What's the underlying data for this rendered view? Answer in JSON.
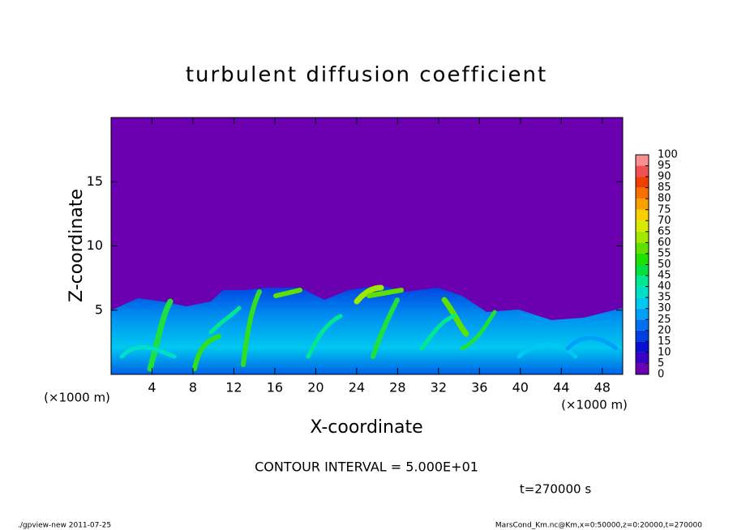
{
  "chart_data": {
    "type": "heatmap",
    "title": "turbulent diffusion coefficient",
    "x_label": "X-coordinate",
    "y_label": "Z-coordinate",
    "x_unit": "(×1000 m)",
    "y_unit": "(×1000 m)",
    "xlim": [
      0,
      50
    ],
    "xticks": [
      4,
      8,
      12,
      16,
      20,
      24,
      28,
      32,
      36,
      40,
      44,
      48
    ],
    "ylim": [
      0,
      20
    ],
    "yticks": [
      5,
      10,
      15
    ],
    "colorbar": {
      "levels": [
        0,
        5,
        10,
        15,
        20,
        25,
        30,
        35,
        40,
        45,
        50,
        55,
        60,
        65,
        70,
        75,
        80,
        85,
        90,
        95,
        100
      ],
      "colors": [
        "#6a00b0",
        "#3a00c4",
        "#0a10d0",
        "#0040e0",
        "#0070f0",
        "#00a0f8",
        "#00c8f0",
        "#00e0c8",
        "#00e890",
        "#00e040",
        "#20e000",
        "#60e000",
        "#a0e800",
        "#d8e800",
        "#f8d000",
        "#f8a000",
        "#f87000",
        "#f04000",
        "#f05050",
        "#f89090"
      ]
    },
    "annotation": "CONTOUR INTERVAL = 5.000E+01",
    "time_label": "t=270000 s",
    "footer_left": "./gpview-new  2011-07-25",
    "footer_right": "MarsCond_Km.nc@Km,x=0:50000,z=0:20000,t=270000"
  }
}
